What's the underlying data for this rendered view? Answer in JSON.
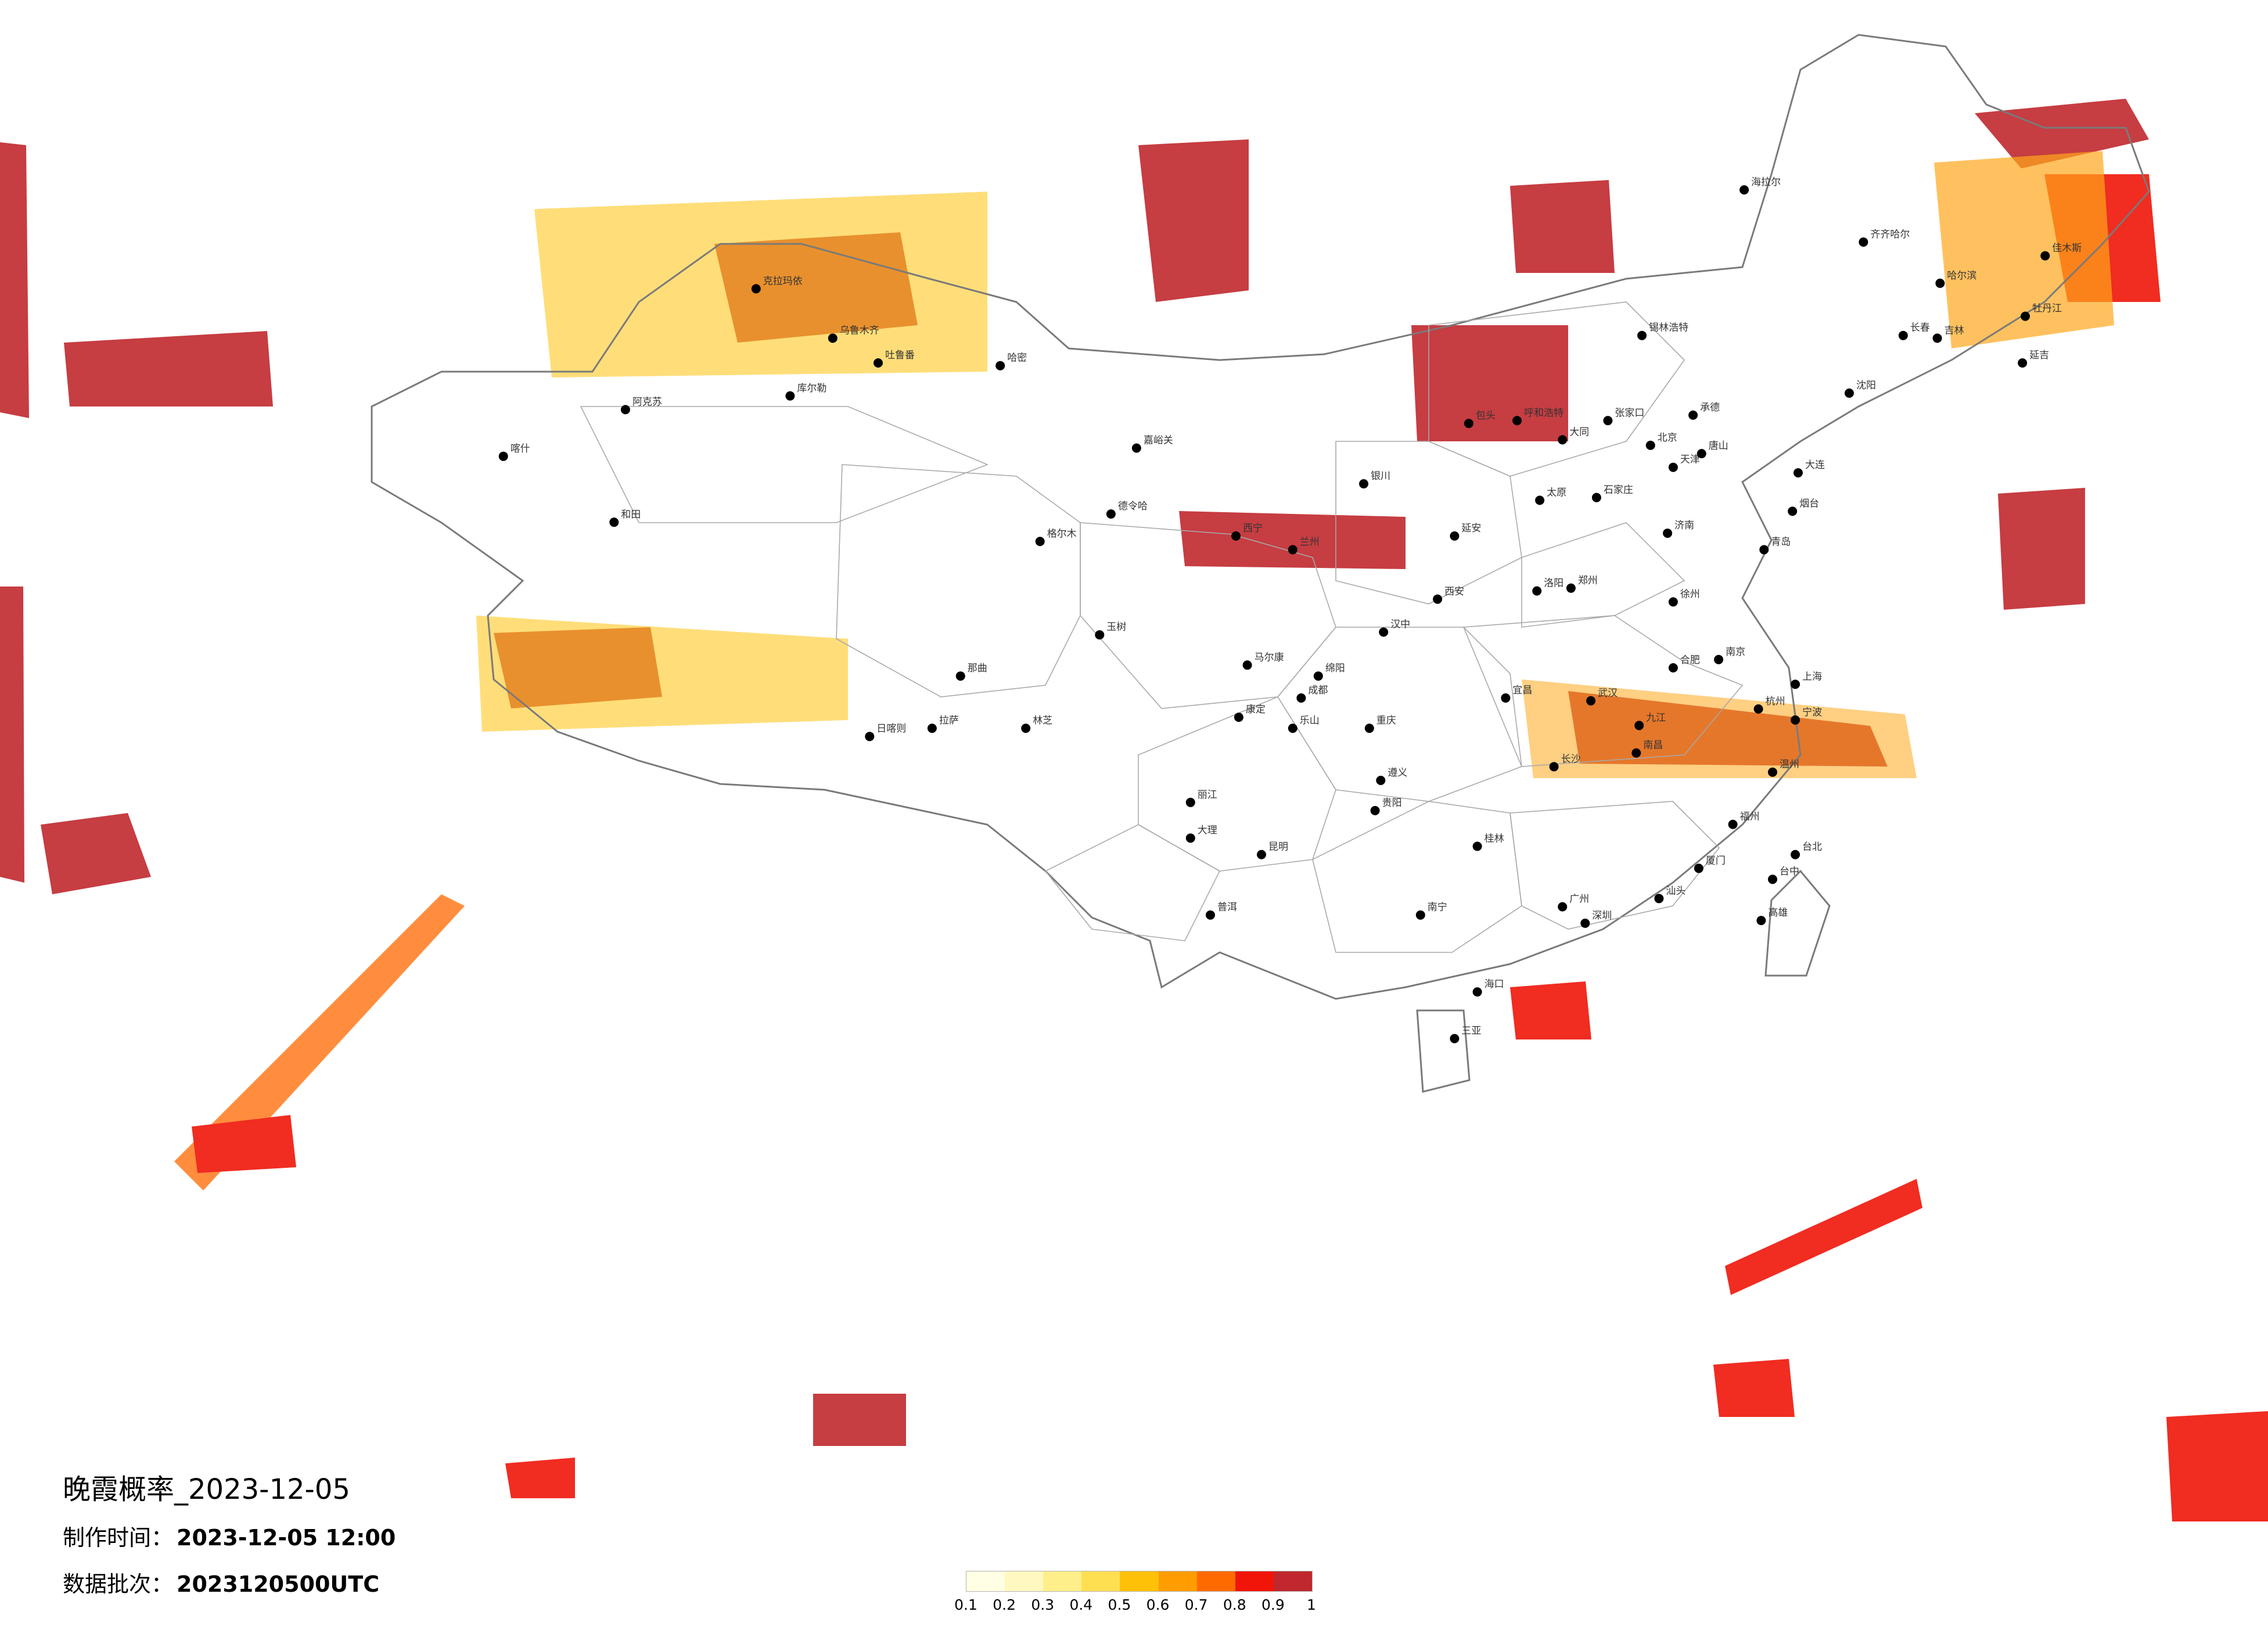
{
  "title": "晚霞概率_2023-12-05",
  "info": {
    "made_label": "制作时间：",
    "made_value": "2023-12-05 12:00",
    "batch_label": "数据批次：",
    "batch_value": "2023120500UTC"
  },
  "legend": {
    "ticks": [
      "0.1",
      "0.2",
      "0.3",
      "0.4",
      "0.5",
      "0.6",
      "0.7",
      "0.8",
      "0.9",
      "1"
    ],
    "colors": [
      "#ffffe3",
      "#fff8c0",
      "#ffef8a",
      "#ffdf52",
      "#ffc107",
      "#ff9d00",
      "#ff6a00",
      "#f01508",
      "#c0282d"
    ]
  },
  "probability_areas": [
    {
      "level": "0.9-1",
      "region": "west-edge",
      "color": "#c0282d"
    },
    {
      "level": "0.9-1",
      "region": "central-east-band",
      "color": "#c0282d"
    },
    {
      "level": "0.9-1",
      "region": "northeast",
      "color": "#c0282d"
    },
    {
      "level": "0.9-1",
      "region": "tibet-west",
      "color": "#c0282d"
    },
    {
      "level": "0.9-1",
      "region": "xinjiang-north",
      "color": "#c0282d"
    },
    {
      "level": "0.9-1",
      "region": "mongolia",
      "color": "#c0282d"
    },
    {
      "level": "0.9-1",
      "region": "east-sea",
      "color": "#c0282d"
    },
    {
      "level": "0.8-0.9",
      "region": "south-china-sea",
      "color": "#f01508"
    },
    {
      "level": "0.8-0.9",
      "region": "indian-ocean",
      "color": "#f01508"
    }
  ],
  "cities": [
    {
      "name": "喀什",
      "lon": 76.0,
      "lat": 39.5
    },
    {
      "name": "阿克苏",
      "lon": 80.3,
      "lat": 41.2
    },
    {
      "name": "和田",
      "lon": 79.9,
      "lat": 37.1
    },
    {
      "name": "克拉玛依",
      "lon": 84.9,
      "lat": 45.6
    },
    {
      "name": "乌鲁木齐",
      "lon": 87.6,
      "lat": 43.8
    },
    {
      "name": "吐鲁番",
      "lon": 89.2,
      "lat": 42.9
    },
    {
      "name": "库尔勒",
      "lon": 86.1,
      "lat": 41.7
    },
    {
      "name": "哈密",
      "lon": 93.5,
      "lat": 42.8
    },
    {
      "name": "日喀则",
      "lon": 88.9,
      "lat": 29.3
    },
    {
      "name": "拉萨",
      "lon": 91.1,
      "lat": 29.6
    },
    {
      "name": "那曲",
      "lon": 92.1,
      "lat": 31.5
    },
    {
      "name": "林芝",
      "lon": 94.4,
      "lat": 29.6
    },
    {
      "name": "玉树",
      "lon": 97.0,
      "lat": 33.0
    },
    {
      "name": "格尔木",
      "lon": 94.9,
      "lat": 36.4
    },
    {
      "name": "德令哈",
      "lon": 97.4,
      "lat": 37.4
    },
    {
      "name": "西宁",
      "lon": 101.8,
      "lat": 36.6
    },
    {
      "name": "兰州",
      "lon": 103.8,
      "lat": 36.1
    },
    {
      "name": "嘉峪关",
      "lon": 98.3,
      "lat": 39.8
    },
    {
      "name": "银川",
      "lon": 106.3,
      "lat": 38.5
    },
    {
      "name": "呼和浩特",
      "lon": 111.7,
      "lat": 40.8
    },
    {
      "name": "包头",
      "lon": 110.0,
      "lat": 40.7
    },
    {
      "name": "大同",
      "lon": 113.3,
      "lat": 40.1
    },
    {
      "name": "太原",
      "lon": 112.5,
      "lat": 37.9
    },
    {
      "name": "石家庄",
      "lon": 114.5,
      "lat": 38.0
    },
    {
      "name": "北京",
      "lon": 116.4,
      "lat": 39.9
    },
    {
      "name": "天津",
      "lon": 117.2,
      "lat": 39.1
    },
    {
      "name": "唐山",
      "lon": 118.2,
      "lat": 39.6
    },
    {
      "name": "张家口",
      "lon": 114.9,
      "lat": 40.8
    },
    {
      "name": "承德",
      "lon": 117.9,
      "lat": 41.0
    },
    {
      "name": "锡林浩特",
      "lon": 116.1,
      "lat": 43.9
    },
    {
      "name": "海拉尔",
      "lon": 119.7,
      "lat": 49.2
    },
    {
      "name": "齐齐哈尔",
      "lon": 123.9,
      "lat": 47.3
    },
    {
      "name": "哈尔滨",
      "lon": 126.6,
      "lat": 45.8
    },
    {
      "name": "长春",
      "lon": 125.3,
      "lat": 43.9
    },
    {
      "name": "吉林",
      "lon": 126.5,
      "lat": 43.8
    },
    {
      "name": "沈阳",
      "lon": 123.4,
      "lat": 41.8
    },
    {
      "name": "大连",
      "lon": 121.6,
      "lat": 38.9
    },
    {
      "name": "佳木斯",
      "lon": 130.3,
      "lat": 46.8
    },
    {
      "name": "牡丹江",
      "lon": 129.6,
      "lat": 44.6
    },
    {
      "name": "延吉",
      "lon": 129.5,
      "lat": 42.9
    },
    {
      "name": "济南",
      "lon": 117.0,
      "lat": 36.7
    },
    {
      "name": "青岛",
      "lon": 120.4,
      "lat": 36.1
    },
    {
      "name": "烟台",
      "lon": 121.4,
      "lat": 37.5
    },
    {
      "name": "郑州",
      "lon": 113.6,
      "lat": 34.7
    },
    {
      "name": "洛阳",
      "lon": 112.4,
      "lat": 34.6
    },
    {
      "name": "西安",
      "lon": 108.9,
      "lat": 34.3
    },
    {
      "name": "延安",
      "lon": 109.5,
      "lat": 36.6
    },
    {
      "name": "汉中",
      "lon": 107.0,
      "lat": 33.1
    },
    {
      "name": "合肥",
      "lon": 117.2,
      "lat": 31.8
    },
    {
      "name": "南京",
      "lon": 118.8,
      "lat": 32.1
    },
    {
      "name": "徐州",
      "lon": 117.2,
      "lat": 34.2
    },
    {
      "name": "上海",
      "lon": 121.5,
      "lat": 31.2
    },
    {
      "name": "杭州",
      "lon": 120.2,
      "lat": 30.3
    },
    {
      "name": "宁波",
      "lon": 121.5,
      "lat": 29.9
    },
    {
      "name": "温州",
      "lon": 120.7,
      "lat": 28.0
    },
    {
      "name": "武汉",
      "lon": 114.3,
      "lat": 30.6
    },
    {
      "name": "宜昌",
      "lon": 111.3,
      "lat": 30.7
    },
    {
      "name": "长沙",
      "lon": 113.0,
      "lat": 28.2
    },
    {
      "name": "南昌",
      "lon": 115.9,
      "lat": 28.7
    },
    {
      "name": "九江",
      "lon": 116.0,
      "lat": 29.7
    },
    {
      "name": "福州",
      "lon": 119.3,
      "lat": 26.1
    },
    {
      "name": "厦门",
      "lon": 118.1,
      "lat": 24.5
    },
    {
      "name": "台北",
      "lon": 121.5,
      "lat": 25.0
    },
    {
      "name": "台中",
      "lon": 120.7,
      "lat": 24.1
    },
    {
      "name": "高雄",
      "lon": 120.3,
      "lat": 22.6
    },
    {
      "name": "广州",
      "lon": 113.3,
      "lat": 23.1
    },
    {
      "name": "深圳",
      "lon": 114.1,
      "lat": 22.5
    },
    {
      "name": "汕头",
      "lon": 116.7,
      "lat": 23.4
    },
    {
      "name": "南宁",
      "lon": 108.3,
      "lat": 22.8
    },
    {
      "name": "桂林",
      "lon": 110.3,
      "lat": 25.3
    },
    {
      "name": "海口",
      "lon": 110.3,
      "lat": 20.0
    },
    {
      "name": "三亚",
      "lon": 109.5,
      "lat": 18.3
    },
    {
      "name": "贵阳",
      "lon": 106.7,
      "lat": 26.6
    },
    {
      "name": "遵义",
      "lon": 106.9,
      "lat": 27.7
    },
    {
      "name": "昆明",
      "lon": 102.7,
      "lat": 25.0
    },
    {
      "name": "大理",
      "lon": 100.2,
      "lat": 25.6
    },
    {
      "name": "丽江",
      "lon": 100.2,
      "lat": 26.9
    },
    {
      "name": "普洱",
      "lon": 100.9,
      "lat": 22.8
    },
    {
      "name": "成都",
      "lon": 104.1,
      "lat": 30.7
    },
    {
      "name": "绵阳",
      "lon": 104.7,
      "lat": 31.5
    },
    {
      "name": "重庆",
      "lon": 106.5,
      "lat": 29.6
    },
    {
      "name": "乐山",
      "lon": 103.8,
      "lat": 29.6
    },
    {
      "name": "康定",
      "lon": 101.9,
      "lat": 30.0
    },
    {
      "name": "马尔康",
      "lon": 102.2,
      "lat": 31.9
    }
  ]
}
